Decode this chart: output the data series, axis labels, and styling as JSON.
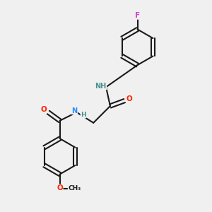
{
  "background_color": "#f0f0f0",
  "bond_color": "#1a1a1a",
  "atom_colors": {
    "N": "#1e90ff",
    "O": "#ff2200",
    "F": "#cc44cc",
    "C": "#1a1a1a",
    "H": "#4a9090"
  },
  "figsize": [
    3.0,
    3.0
  ],
  "dpi": 100
}
